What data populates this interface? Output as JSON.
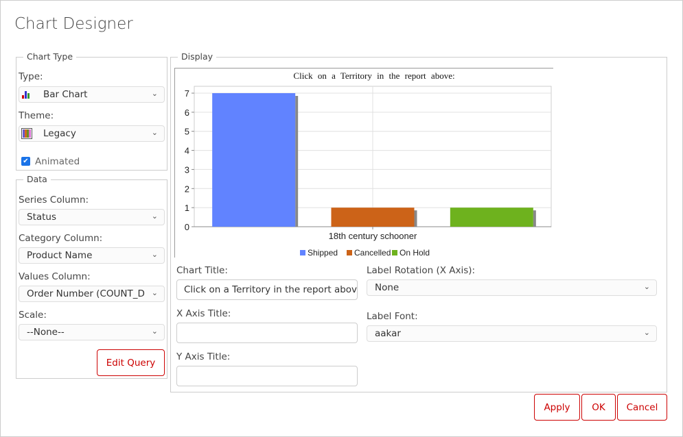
{
  "dialog": {
    "title": "Chart Designer"
  },
  "chart_type": {
    "legend": "Chart Type",
    "type_label": "Type:",
    "type_value": "Bar Chart",
    "type_icon": "bar-chart-icon",
    "theme_label": "Theme:",
    "theme_value": "Legacy",
    "theme_icon": "palette-icon",
    "animated_label": "Animated",
    "animated": true
  },
  "data": {
    "legend": "Data",
    "series_label": "Series Column:",
    "series_value": "Status",
    "category_label": "Category Column:",
    "category_value": "Product Name",
    "values_label": "Values Column:",
    "values_value": "Order Number (COUNT_DISTINCT)",
    "scale_label": "Scale:",
    "scale_value": "--None--",
    "edit_query": "Edit Query"
  },
  "display": {
    "legend": "Display",
    "chart_title_label": "Chart Title:",
    "chart_title_value": "Click on a Territory in the report above:",
    "x_axis_label": "X Axis Title:",
    "x_axis_value": "",
    "y_axis_label": "Y Axis Title:",
    "y_axis_value": "",
    "rotation_label": "Label Rotation (X Axis):",
    "rotation_value": "None",
    "font_label": "Label Font:",
    "font_value": "aakar"
  },
  "buttons": {
    "apply": "Apply",
    "ok": "OK",
    "cancel": "Cancel"
  },
  "chart_data": {
    "type": "bar",
    "title": "Click on a Territory in the report above:",
    "categories": [
      "18th century schooner"
    ],
    "series": [
      {
        "name": "Shipped",
        "values": [
          7
        ],
        "color": "#6183ff"
      },
      {
        "name": "Cancelled",
        "values": [
          1
        ],
        "color": "#cc6318"
      },
      {
        "name": "On Hold",
        "values": [
          1
        ],
        "color": "#6eb21e"
      }
    ],
    "ylim": [
      0,
      7
    ],
    "yticks": [
      "0",
      "1",
      "2",
      "3",
      "4",
      "5",
      "6",
      "7"
    ],
    "grid": true,
    "legend_position": "bottom"
  }
}
